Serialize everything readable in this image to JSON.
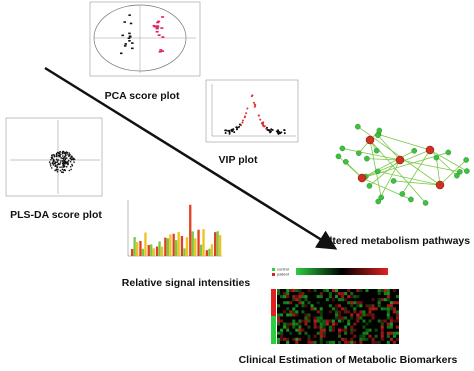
{
  "panels": {
    "pca": {
      "label": "PCA score plot"
    },
    "vip": {
      "label": "VIP plot"
    },
    "plsda": {
      "label": "PLS-DA score plot"
    },
    "pathways": {
      "label": "Altered metabolism pathways"
    },
    "intensities": {
      "label": "Relative signal intensities"
    },
    "biomarkers": {
      "label": "Clinical Estimation of Metabolic Biomarkers",
      "legend": [
        "control",
        "patient"
      ]
    }
  }
}
